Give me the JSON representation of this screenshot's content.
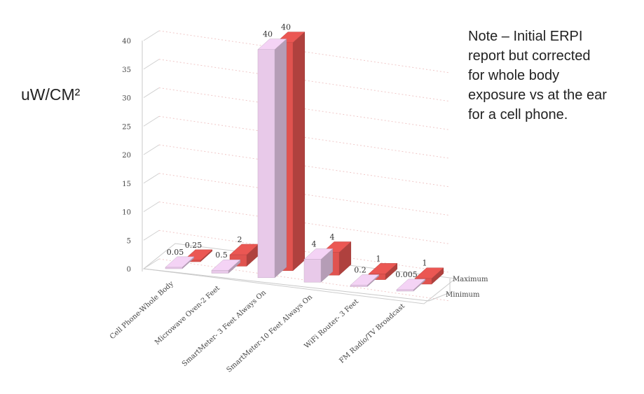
{
  "chart_data": {
    "type": "bar",
    "style": "3d-clustered",
    "ylabel": "uW/CM²",
    "ylim": [
      0,
      40
    ],
    "yticks": [
      "0",
      "5",
      "10",
      "15",
      "20",
      "25",
      "30",
      "35",
      "40"
    ],
    "grid": true,
    "legend_position": "right",
    "categories": [
      "Cell Phone-Whole Body",
      "Microwave Oven-2 Feet",
      "SmartMeter- 3 Feet Always On",
      "SmartMeter-10 Feet Always On",
      "WiFi Router- 3 Feet",
      "FM Radio/TV Broadcast"
    ],
    "series": [
      {
        "name": "Minimum",
        "values": [
          0.05,
          0.5,
          40,
          4,
          0.2,
          0.005
        ],
        "labels": [
          "0.05",
          "0.5",
          "40",
          "4",
          "0.2",
          "0.005"
        ],
        "color": "#e8c9e9"
      },
      {
        "name": "Maximum",
        "values": [
          0.25,
          2,
          40,
          4,
          1,
          1
        ],
        "labels": [
          "0.25",
          "2",
          "40",
          "4",
          "1",
          "1"
        ],
        "color": "#e0534f"
      }
    ]
  },
  "note": [
    "Note – Initial ERPI",
    "report but corrected",
    "for whole body",
    "exposure vs at the ear",
    "for a cell phone."
  ]
}
